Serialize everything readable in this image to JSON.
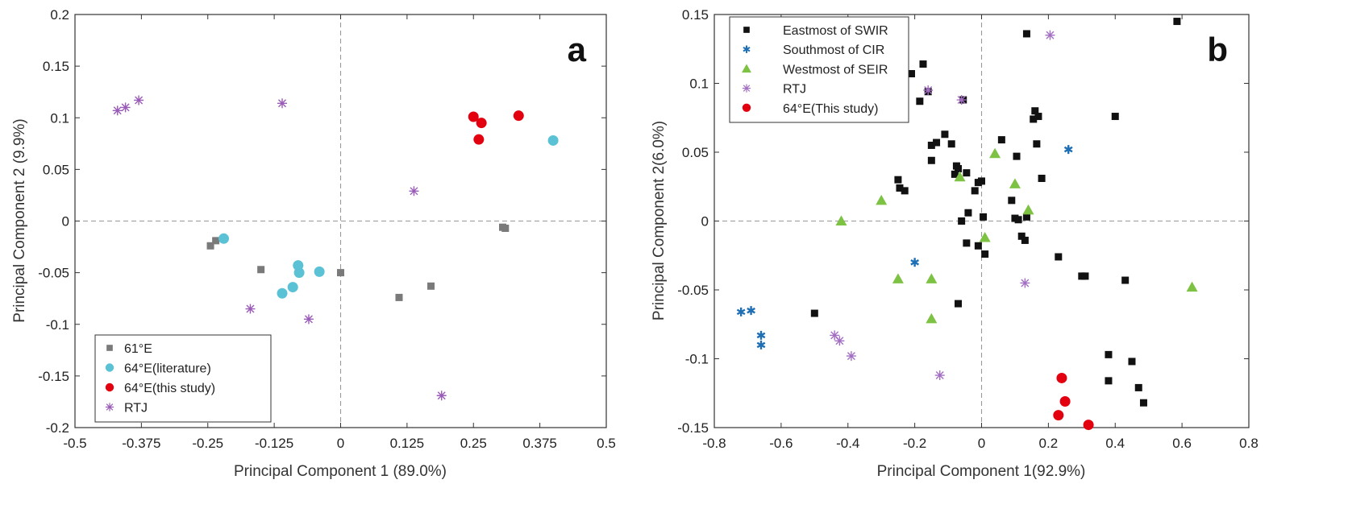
{
  "chart_data": [
    {
      "type": "scatter",
      "panel_label": "a",
      "xlabel": "Principal Component 1 (89.0%)",
      "ylabel": "Principal Component 2 (9.9%)",
      "xlim": [
        -0.5,
        0.5
      ],
      "ylim": [
        -0.2,
        0.2
      ],
      "xticks": [
        -0.5,
        -0.375,
        -0.25,
        -0.125,
        0,
        0.125,
        0.25,
        0.375,
        0.5
      ],
      "xtick_labels": [
        "-0.5",
        "-0.375",
        "-0.25",
        "-0.125",
        "0",
        "0.125",
        "0.25",
        "0.375",
        "0.5"
      ],
      "yticks": [
        -0.2,
        -0.15,
        -0.1,
        -0.05,
        0,
        0.05,
        0.1,
        0.15,
        0.2
      ],
      "ytick_labels": [
        "-0.2",
        "-0.15",
        "-0.1",
        "-0.05",
        "0",
        "0.05",
        "0.1",
        "0.15",
        "0.2"
      ],
      "zero_lines": true,
      "legend_position": "bottom-left",
      "series": [
        {
          "name": "61°E",
          "marker": "square",
          "color": "#7a7a7a",
          "points": [
            [
              -0.245,
              -0.024
            ],
            [
              -0.235,
              -0.019
            ],
            [
              -0.15,
              -0.047
            ],
            [
              0.0,
              -0.05
            ],
            [
              0.11,
              -0.074
            ],
            [
              0.17,
              -0.063
            ],
            [
              0.305,
              -0.006
            ],
            [
              0.31,
              -0.007
            ]
          ]
        },
        {
          "name": "64°E(literature)",
          "marker": "circle",
          "color": "#5bc2d6",
          "points": [
            [
              -0.22,
              -0.017
            ],
            [
              -0.11,
              -0.07
            ],
            [
              -0.09,
              -0.064
            ],
            [
              -0.08,
              -0.043
            ],
            [
              -0.078,
              -0.05
            ],
            [
              -0.04,
              -0.049
            ],
            [
              0.4,
              0.078
            ]
          ]
        },
        {
          "name": "64°E(this study)",
          "marker": "circle",
          "color": "#e3000f",
          "points": [
            [
              0.25,
              0.101
            ],
            [
              0.26,
              0.079
            ],
            [
              0.265,
              0.095
            ],
            [
              0.335,
              0.102
            ]
          ]
        },
        {
          "name": "RTJ",
          "marker": "asterisk",
          "color": "#9a5bb8",
          "points": [
            [
              -0.42,
              0.107
            ],
            [
              -0.405,
              0.11
            ],
            [
              -0.38,
              0.117
            ],
            [
              -0.11,
              0.114
            ],
            [
              -0.17,
              -0.085
            ],
            [
              -0.06,
              -0.095
            ],
            [
              0.138,
              0.029
            ],
            [
              0.19,
              -0.169
            ]
          ]
        }
      ]
    },
    {
      "type": "scatter",
      "panel_label": "b",
      "xlabel": "Principal Component 1(92.9%)",
      "ylabel": "Principal Component 2(6.0%)",
      "xlim": [
        -0.8,
        0.8
      ],
      "ylim": [
        -0.15,
        0.15
      ],
      "xticks": [
        -0.8,
        -0.6,
        -0.4,
        -0.2,
        0,
        0.2,
        0.4,
        0.6,
        0.8
      ],
      "xtick_labels": [
        "-0.8",
        "-0.6",
        "-0.4",
        "-0.2",
        "0",
        "0.2",
        "0.4",
        "0.6",
        "0.8"
      ],
      "yticks": [
        -0.15,
        -0.1,
        -0.05,
        0,
        0.05,
        0.1,
        0.15
      ],
      "ytick_labels": [
        "-0.15",
        "-0.1",
        "-0.05",
        "0",
        "0.05",
        "0.1",
        "0.15"
      ],
      "zero_lines": true,
      "legend_position": "top-left",
      "series": [
        {
          "name": "Eastmost of SWIR",
          "marker": "square",
          "color": "#111111",
          "points": [
            [
              -0.21,
              0.107
            ],
            [
              -0.185,
              0.087
            ],
            [
              -0.175,
              0.114
            ],
            [
              -0.16,
              0.094
            ],
            [
              -0.15,
              0.044
            ],
            [
              -0.15,
              0.055
            ],
            [
              -0.135,
              0.057
            ],
            [
              -0.11,
              0.063
            ],
            [
              -0.09,
              0.056
            ],
            [
              -0.08,
              0.034
            ],
            [
              -0.075,
              0.04
            ],
            [
              -0.07,
              0.038
            ],
            [
              -0.06,
              0.0
            ],
            [
              -0.045,
              0.035
            ],
            [
              -0.04,
              0.006
            ],
            [
              -0.045,
              -0.016
            ],
            [
              -0.02,
              0.022
            ],
            [
              -0.01,
              0.028
            ],
            [
              -0.01,
              -0.018
            ],
            [
              0.0,
              0.029
            ],
            [
              0.005,
              0.003
            ],
            [
              0.01,
              -0.024
            ],
            [
              -0.25,
              0.03
            ],
            [
              -0.245,
              0.024
            ],
            [
              -0.23,
              0.022
            ],
            [
              -0.5,
              -0.067
            ],
            [
              -0.07,
              -0.06
            ],
            [
              -0.055,
              0.088
            ],
            [
              0.06,
              0.059
            ],
            [
              0.09,
              0.015
            ],
            [
              0.1,
              0.002
            ],
            [
              0.105,
              0.047
            ],
            [
              0.11,
              0.001
            ],
            [
              0.12,
              -0.011
            ],
            [
              0.13,
              -0.014
            ],
            [
              0.135,
              0.003
            ],
            [
              0.135,
              0.136
            ],
            [
              0.155,
              0.074
            ],
            [
              0.16,
              0.08
            ],
            [
              0.165,
              0.056
            ],
            [
              0.17,
              0.076
            ],
            [
              0.18,
              0.031
            ],
            [
              0.23,
              -0.026
            ],
            [
              0.3,
              -0.04
            ],
            [
              0.31,
              -0.04
            ],
            [
              0.38,
              -0.097
            ],
            [
              0.38,
              -0.116
            ],
            [
              0.4,
              0.076
            ],
            [
              0.43,
              -0.043
            ],
            [
              0.45,
              -0.102
            ],
            [
              0.47,
              -0.121
            ],
            [
              0.485,
              -0.132
            ],
            [
              0.585,
              0.145
            ]
          ]
        },
        {
          "name": "Southmost of CIR",
          "marker": "asterisk6",
          "color": "#1f6fb5",
          "points": [
            [
              -0.72,
              -0.066
            ],
            [
              -0.69,
              -0.065
            ],
            [
              -0.66,
              -0.083
            ],
            [
              -0.66,
              -0.09
            ],
            [
              -0.2,
              -0.03
            ],
            [
              0.26,
              0.052
            ]
          ]
        },
        {
          "name": "Westmost of SEIR",
          "marker": "triangle",
          "color": "#7dc242",
          "points": [
            [
              -0.42,
              0.0
            ],
            [
              -0.3,
              0.015
            ],
            [
              -0.25,
              -0.042
            ],
            [
              -0.15,
              -0.042
            ],
            [
              -0.15,
              -0.071
            ],
            [
              -0.065,
              0.032
            ],
            [
              0.01,
              -0.012
            ],
            [
              0.04,
              0.049
            ],
            [
              0.1,
              0.027
            ],
            [
              0.14,
              0.008
            ],
            [
              0.63,
              -0.048
            ]
          ]
        },
        {
          "name": "RTJ",
          "marker": "asterisk",
          "color": "#a36fc2",
          "points": [
            [
              -0.44,
              -0.083
            ],
            [
              -0.425,
              -0.087
            ],
            [
              -0.39,
              -0.098
            ],
            [
              -0.16,
              0.095
            ],
            [
              -0.06,
              0.088
            ],
            [
              -0.125,
              -0.112
            ],
            [
              0.13,
              -0.045
            ],
            [
              0.205,
              0.135
            ]
          ]
        },
        {
          "name": "64°E(This study)",
          "marker": "circle",
          "color": "#e3000f",
          "points": [
            [
              0.23,
              -0.141
            ],
            [
              0.24,
              -0.114
            ],
            [
              0.25,
              -0.131
            ],
            [
              0.32,
              -0.148
            ]
          ]
        }
      ]
    }
  ]
}
